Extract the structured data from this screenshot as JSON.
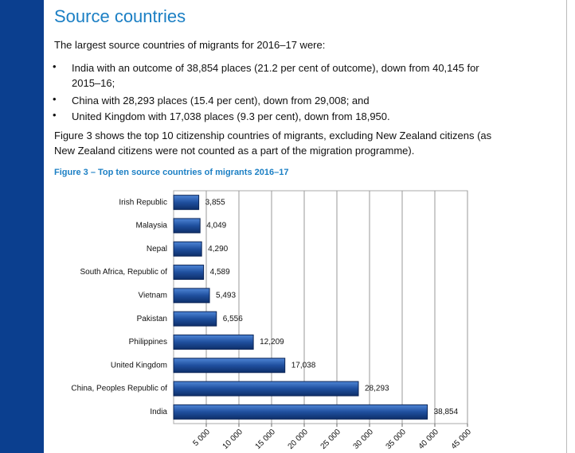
{
  "header": {
    "title": "Source countries"
  },
  "intro": "The largest source countries of migrants for 2016–17 were:",
  "bullets": [
    "India with an outcome of 38,854 places (21.2 per cent of outcome), down from 40,145 for 2015–16;",
    "China with 28,293 places (15.4 per cent), down from 29,008; and",
    "United Kingdom with 17,038 places (9.3 per cent), down from 18,950."
  ],
  "paragraph": "Figure 3 shows the top 10 citizenship countries of migrants, excluding New Zealand citizens (as New Zealand citizens were not counted as a part of the migration programme).",
  "chart_data": {
    "type": "bar",
    "orientation": "horizontal",
    "title": "Figure 3 – Top ten source countries of migrants 2016–17",
    "categories": [
      "Irish Republic",
      "Malaysia",
      "Nepal",
      "South Africa, Republic of",
      "Vietnam",
      "Pakistan",
      "Philippines",
      "United Kingdom",
      "China, Peoples Republic of",
      "India"
    ],
    "values": [
      3855,
      4049,
      4290,
      4589,
      5493,
      6556,
      12209,
      17038,
      28293,
      38854
    ],
    "value_labels": [
      "3,855",
      "4,049",
      "4,290",
      "4,589",
      "5,493",
      "6,556",
      "12,209",
      "17,038",
      "28,293",
      "38,854"
    ],
    "color": "#1f4f9e",
    "xlim": [
      0,
      45000
    ],
    "xticks": [
      {
        "value": 5000,
        "label": "5 000"
      },
      {
        "value": 10000,
        "label": "10 000"
      },
      {
        "value": 15000,
        "label": "15 000"
      },
      {
        "value": 20000,
        "label": "20 000"
      },
      {
        "value": 25000,
        "label": "25 000"
      },
      {
        "value": 30000,
        "label": "30 000"
      },
      {
        "value": 35000,
        "label": "35 000"
      },
      {
        "value": 40000,
        "label": "40 000"
      },
      {
        "value": 45000,
        "label": "45 000"
      }
    ],
    "grid": true
  }
}
